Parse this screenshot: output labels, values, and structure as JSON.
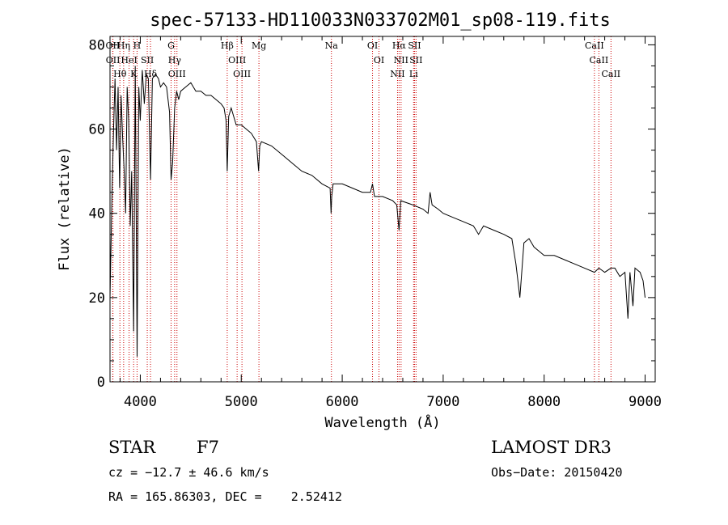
{
  "chart_data": {
    "type": "line",
    "title": "spec-57133-HD110033N033702M01_sp08-119.fits",
    "xlabel": "Wavelength (Å)",
    "ylabel": "Flux (relative)",
    "xlim": [
      3700,
      9100
    ],
    "ylim": [
      0,
      82
    ],
    "xticks": [
      4000,
      5000,
      6000,
      7000,
      8000,
      9000
    ],
    "yticks": [
      0,
      20,
      40,
      60,
      80
    ],
    "series": [
      {
        "name": "spectrum",
        "color": "#000000",
        "x": [
          3700,
          3720,
          3735,
          3750,
          3765,
          3780,
          3795,
          3810,
          3825,
          3840,
          3855,
          3870,
          3885,
          3900,
          3915,
          3934,
          3950,
          3968,
          3985,
          4000,
          4020,
          4040,
          4060,
          4080,
          4101,
          4120,
          4150,
          4180,
          4200,
          4230,
          4260,
          4290,
          4305,
          4320,
          4340,
          4360,
          4380,
          4400,
          4450,
          4500,
          4550,
          4600,
          4650,
          4700,
          4750,
          4800,
          4830,
          4850,
          4861,
          4875,
          4900,
          4950,
          5000,
          5050,
          5100,
          5150,
          5172,
          5183,
          5200,
          5300,
          5400,
          5500,
          5600,
          5700,
          5800,
          5880,
          5890,
          5896,
          5910,
          6000,
          6100,
          6200,
          6280,
          6300,
          6320,
          6400,
          6500,
          6540,
          6563,
          6580,
          6700,
          6800,
          6850,
          6870,
          6890,
          6950,
          7000,
          7100,
          7200,
          7300,
          7350,
          7400,
          7500,
          7600,
          7680,
          7700,
          7720,
          7760,
          7800,
          7850,
          7900,
          7950,
          8000,
          8100,
          8200,
          8300,
          8400,
          8498,
          8542,
          8600,
          8662,
          8700,
          8750,
          8800,
          8830,
          8850,
          8880,
          8900,
          8950,
          8980,
          9000
        ],
        "y": [
          20,
          45,
          60,
          72,
          55,
          70,
          46,
          68,
          58,
          50,
          40,
          70,
          62,
          37,
          50,
          12,
          75,
          6,
          70,
          62,
          74,
          66,
          73,
          72,
          48,
          72,
          73,
          72,
          70,
          71,
          70,
          64,
          48,
          52,
          65,
          69,
          67,
          69,
          70,
          71,
          69,
          69,
          68,
          68,
          67,
          66,
          65,
          62,
          50,
          63,
          65,
          61,
          61,
          60,
          59,
          57,
          50,
          56,
          57,
          56,
          54,
          52,
          50,
          49,
          47,
          46,
          40,
          44,
          47,
          47,
          46,
          45,
          45,
          47,
          44,
          44,
          43,
          42,
          36,
          43,
          42,
          41,
          40,
          45,
          42,
          41,
          40,
          39,
          38,
          37,
          35,
          37,
          36,
          35,
          34,
          31,
          28,
          20,
          33,
          34,
          32,
          31,
          30,
          30,
          29,
          28,
          27,
          26,
          27,
          26,
          27,
          27,
          25,
          26,
          15,
          26,
          18,
          27,
          26,
          24,
          20
        ]
      }
    ],
    "line_markers_color": "#cc0000",
    "line_markers": [
      {
        "name": "Hθ",
        "x": 3798
      },
      {
        "name": "OII",
        "x": 3727
      },
      {
        "name": "OII",
        "x": 3729
      },
      {
        "name": "HeI",
        "x": 3889
      },
      {
        "name": "Hη",
        "x": 3835
      },
      {
        "name": "SII",
        "x": 4069
      },
      {
        "name": "K",
        "x": 3934
      },
      {
        "name": "H",
        "x": 3968
      },
      {
        "name": "Hδ",
        "x": 4101
      },
      {
        "name": "OIII",
        "x": 4363
      },
      {
        "name": "Hγ",
        "x": 4340
      },
      {
        "name": "G",
        "x": 4305
      },
      {
        "name": "Hβ",
        "x": 4861
      },
      {
        "name": "OIII",
        "x": 4959
      },
      {
        "name": "OIII",
        "x": 5007
      },
      {
        "name": "Mg",
        "x": 5175
      },
      {
        "name": "Na",
        "x": 5893
      },
      {
        "name": "OI",
        "x": 6300
      },
      {
        "name": "OI",
        "x": 6364
      },
      {
        "name": "Hα",
        "x": 6563
      },
      {
        "name": "NII",
        "x": 6548
      },
      {
        "name": "NII",
        "x": 6583
      },
      {
        "name": "Li",
        "x": 6707
      },
      {
        "name": "SII",
        "x": 6716
      },
      {
        "name": "SII",
        "x": 6731
      },
      {
        "name": "CaII",
        "x": 8498
      },
      {
        "name": "CaII",
        "x": 8542
      },
      {
        "name": "CaII",
        "x": 8662
      }
    ]
  },
  "labels": {
    "class": "STAR",
    "subclass": "F7",
    "survey": "LAMOST DR3",
    "redshift": "cz = −12.7 ± 46.6 km/s",
    "obs_date": "Obs−Date: 20150420",
    "coords": "RA = 165.86303, DEC =    2.52412"
  }
}
